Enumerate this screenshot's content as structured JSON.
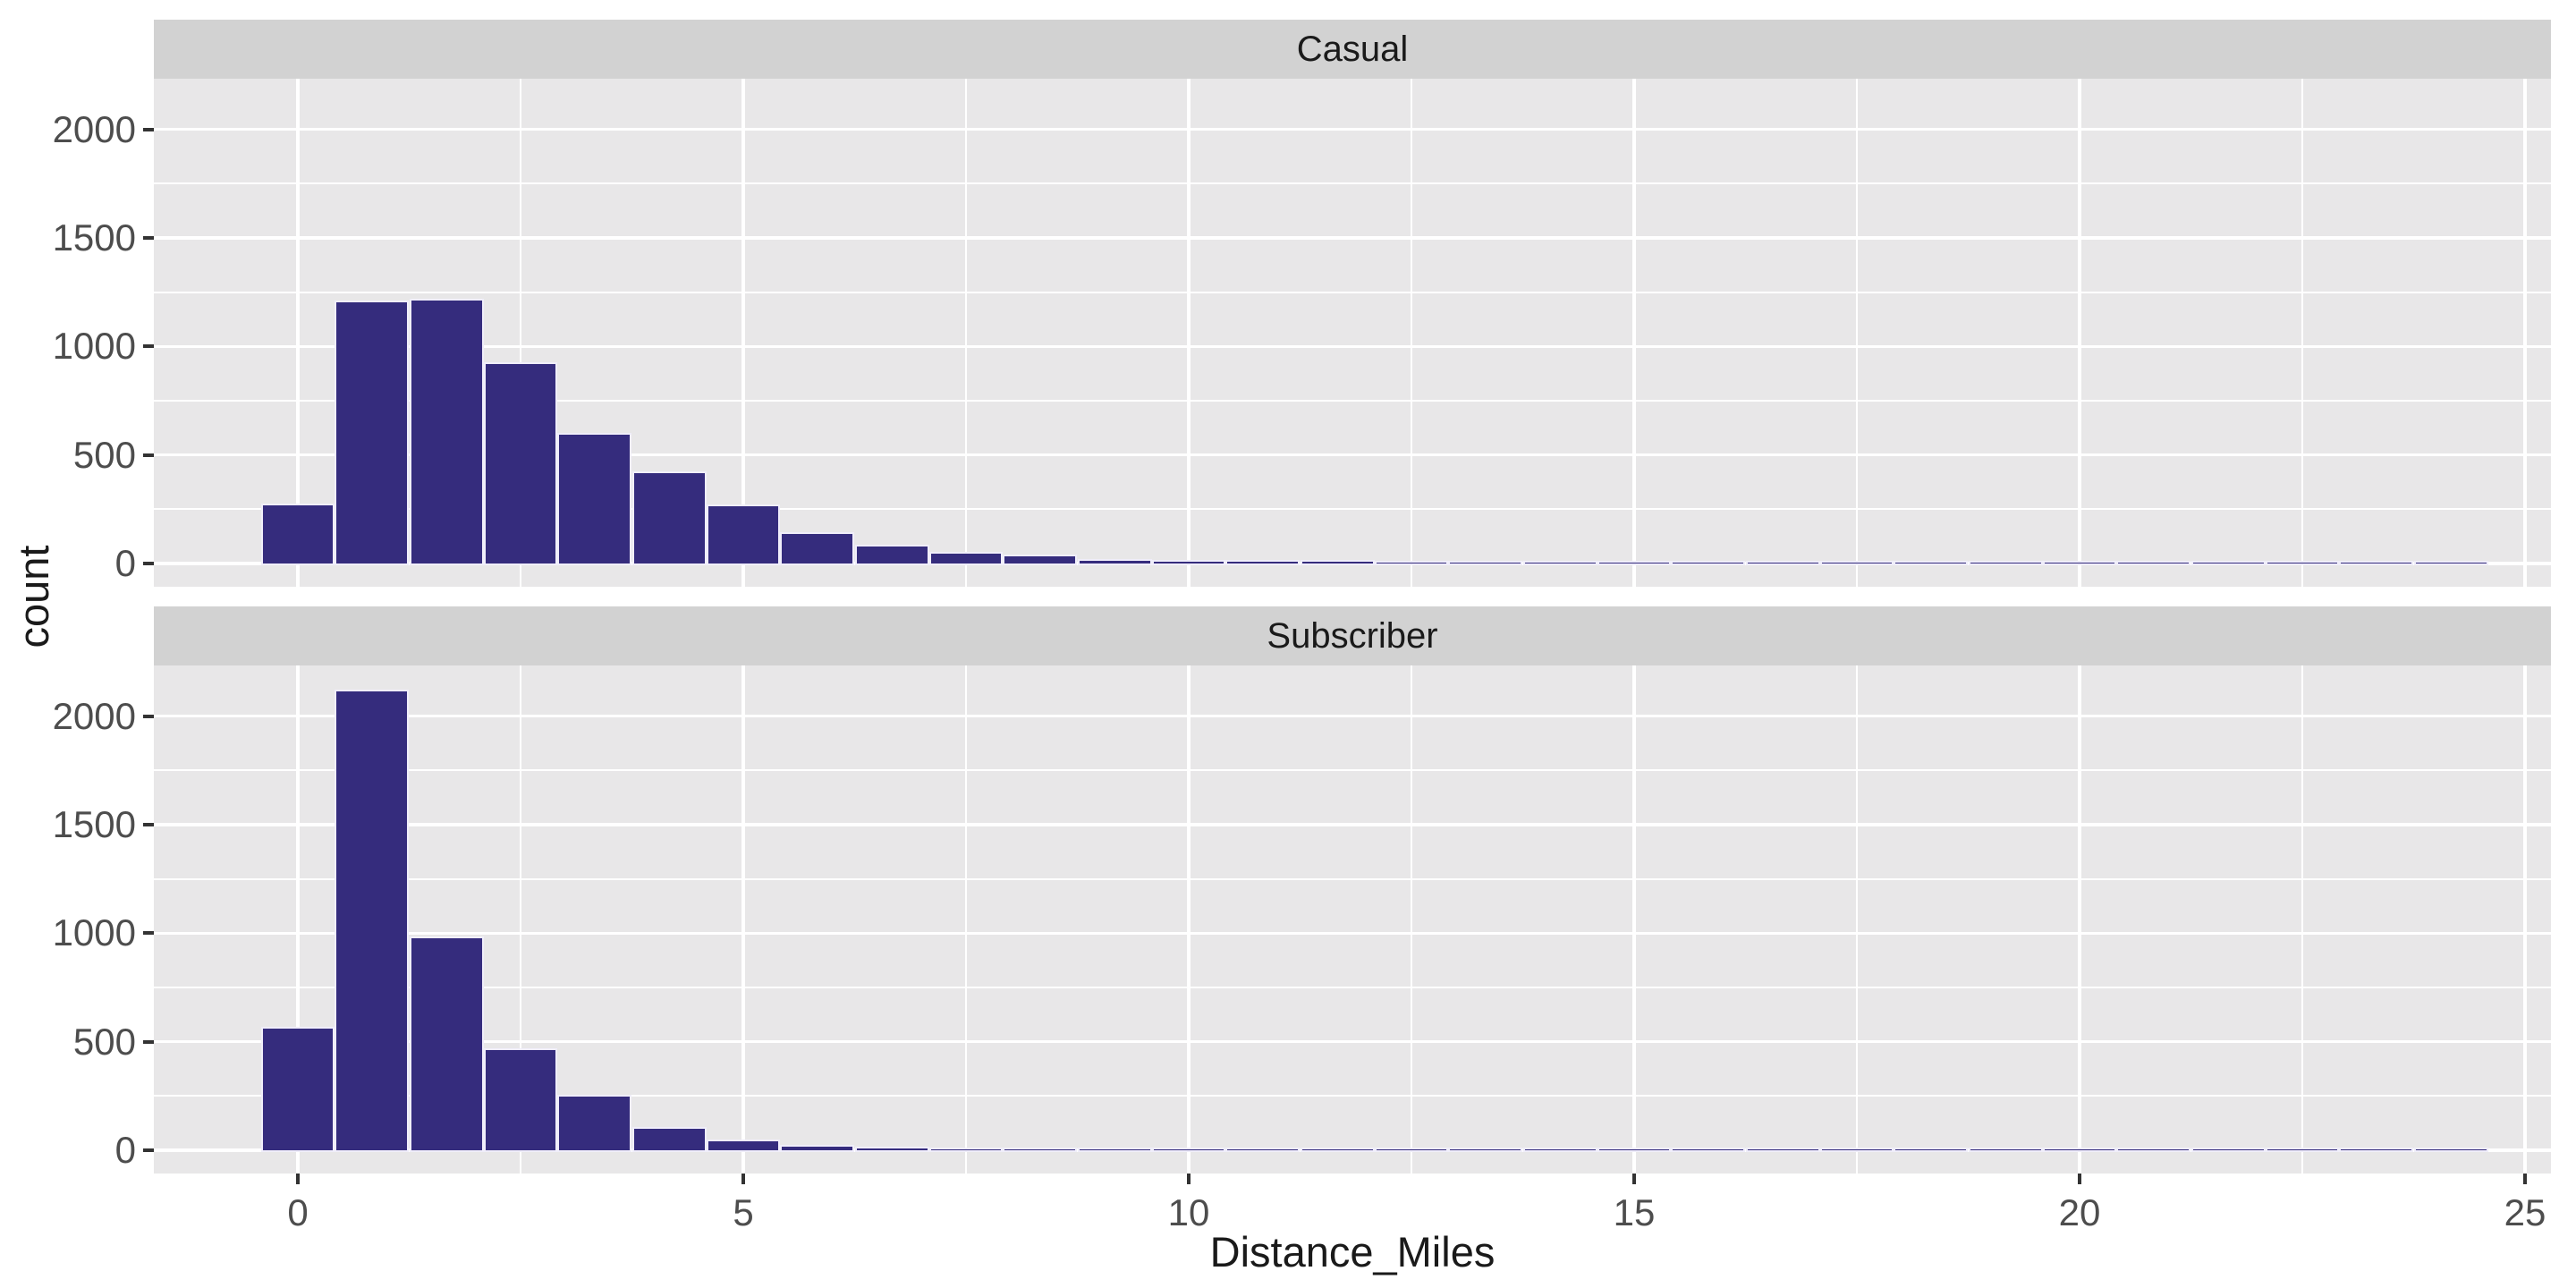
{
  "figure": {
    "x_axis_title": "Distance_Miles",
    "y_axis_title": "count",
    "colors": {
      "bar_fill": "#352C7D",
      "bar_stroke": "#F0EEFA",
      "panel_bg": "#E8E7E8",
      "strip_bg": "#D2D2D2",
      "grid": "#FFFFFF",
      "tick_label": "#4D4D4D",
      "title_text": "#1A1A1A",
      "tick_mark": "#333333"
    }
  },
  "chart_data": {
    "type": "bar",
    "subtype": "faceted_histogram",
    "title": "",
    "xlabel": "Distance_Miles",
    "ylabel": "count",
    "grid": "on",
    "legend": "none",
    "facet_layout": "rows",
    "binwidth": 0.8333,
    "bin_centers": [
      0,
      0.833,
      1.667,
      2.5,
      3.333,
      4.167,
      5.0,
      5.833,
      6.667,
      7.5,
      8.333,
      9.167,
      10.0,
      10.833,
      11.667,
      12.5,
      13.333,
      14.167,
      15.0,
      15.833,
      16.667,
      17.5,
      18.333,
      19.167,
      20.0,
      20.833,
      21.667,
      22.5,
      23.333,
      24.167
    ],
    "x_ticks": [
      0,
      5,
      10,
      15,
      20,
      25
    ],
    "x_minor_ticks": [
      2.5,
      7.5,
      12.5,
      17.5,
      22.5
    ],
    "y_ticks": [
      0,
      500,
      1000,
      1500,
      2000
    ],
    "y_minor_ticks": [
      250,
      750,
      1250,
      1750
    ],
    "xlim": [
      -1.62,
      25.29
    ],
    "ylim": [
      -107,
      2233
    ],
    "facets": [
      {
        "label": "Casual",
        "counts": [
          265,
          1200,
          1210,
          915,
          590,
          415,
          260,
          135,
          75,
          42,
          30,
          12,
          7,
          8,
          5,
          3,
          4,
          2,
          2,
          2,
          3,
          2,
          1,
          1,
          2,
          1,
          1,
          1,
          1,
          1
        ]
      },
      {
        "label": "Subscriber",
        "counts": [
          560,
          2110,
          975,
          460,
          245,
          95,
          40,
          15,
          6,
          3,
          2,
          2,
          1,
          2,
          1,
          1,
          1,
          1,
          1,
          1,
          1,
          1,
          1,
          1,
          1,
          1,
          1,
          1,
          1,
          1
        ]
      }
    ]
  }
}
